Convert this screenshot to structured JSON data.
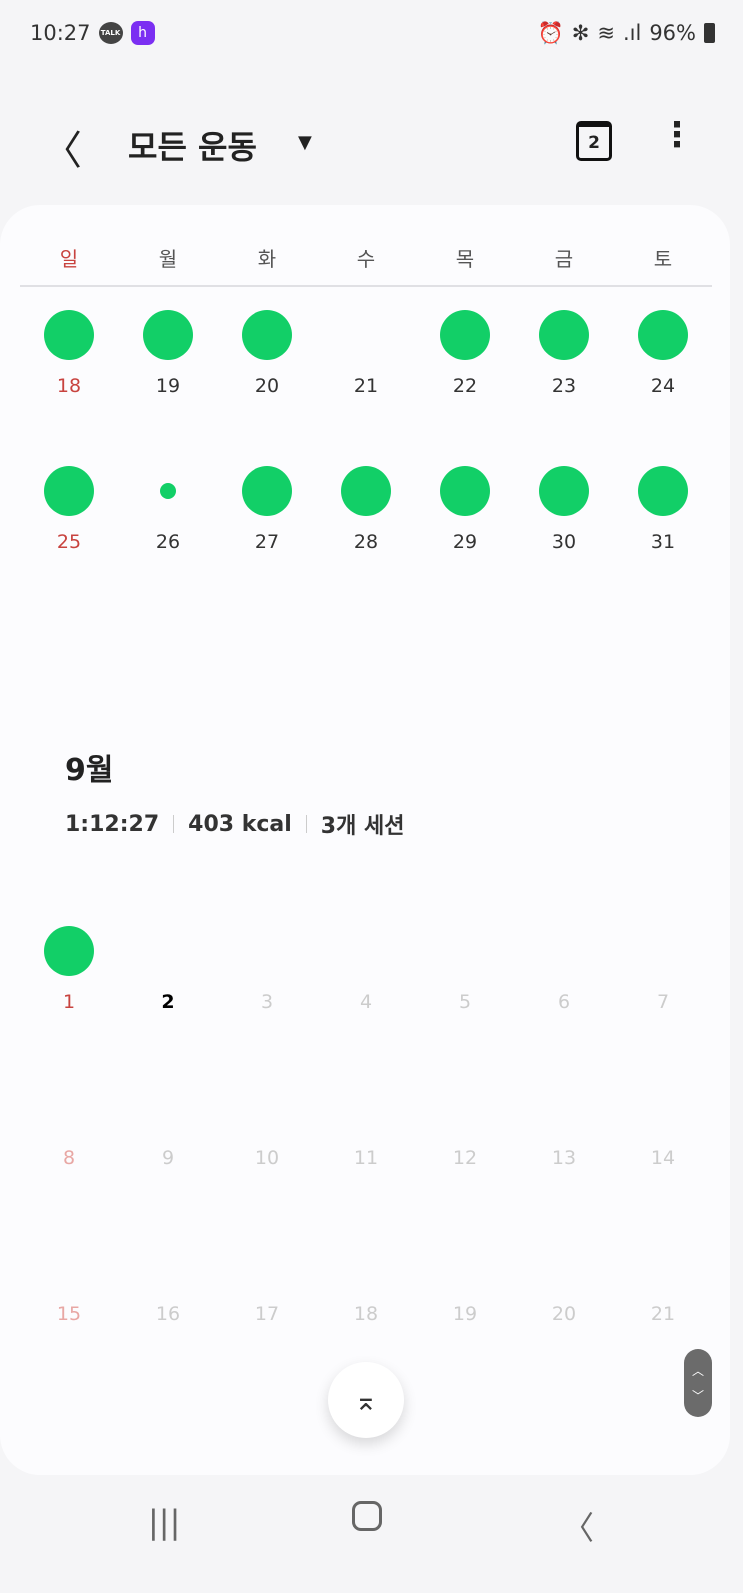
{
  "status": {
    "time": "10:27",
    "talk_badge": "TALK",
    "app_badge": "h",
    "battery": "96%",
    "icons": [
      "alarm-icon",
      "bluetooth-icon",
      "wifi-icon",
      "signal-icon",
      "battery-icon"
    ]
  },
  "header": {
    "title": "모든 운동",
    "calendar_day": "2"
  },
  "weekdays": [
    "일",
    "월",
    "화",
    "수",
    "목",
    "금",
    "토"
  ],
  "august_weeks": [
    [
      {
        "d": "18",
        "dot": "full"
      },
      {
        "d": "19",
        "dot": "full"
      },
      {
        "d": "20",
        "dot": "full"
      },
      {
        "d": "21",
        "dot": "none"
      },
      {
        "d": "22",
        "dot": "full"
      },
      {
        "d": "23",
        "dot": "full"
      },
      {
        "d": "24",
        "dot": "full"
      }
    ],
    [
      {
        "d": "25",
        "dot": "full"
      },
      {
        "d": "26",
        "dot": "small"
      },
      {
        "d": "27",
        "dot": "full"
      },
      {
        "d": "28",
        "dot": "full"
      },
      {
        "d": "29",
        "dot": "full"
      },
      {
        "d": "30",
        "dot": "full"
      },
      {
        "d": "31",
        "dot": "full"
      }
    ]
  ],
  "september": {
    "title": "9월",
    "duration": "1:12:27",
    "calories": "403 kcal",
    "sessions": "3개 세션",
    "weeks": [
      [
        {
          "d": "1",
          "dot": "full"
        },
        {
          "d": "2",
          "dot": "none",
          "today": true
        },
        {
          "d": "3",
          "faded": true
        },
        {
          "d": "4",
          "faded": true
        },
        {
          "d": "5",
          "faded": true
        },
        {
          "d": "6",
          "faded": true
        },
        {
          "d": "7",
          "faded": true
        }
      ],
      [
        {
          "d": "8",
          "faded": true
        },
        {
          "d": "9",
          "faded": true
        },
        {
          "d": "10",
          "faded": true
        },
        {
          "d": "11",
          "faded": true
        },
        {
          "d": "12",
          "faded": true
        },
        {
          "d": "13",
          "faded": true
        },
        {
          "d": "14",
          "faded": true
        }
      ],
      [
        {
          "d": "15",
          "faded": true
        },
        {
          "d": "16",
          "faded": true
        },
        {
          "d": "17",
          "faded": true
        },
        {
          "d": "18",
          "faded": true
        },
        {
          "d": "19",
          "faded": true
        },
        {
          "d": "20",
          "faded": true
        },
        {
          "d": "21",
          "faded": true
        }
      ]
    ]
  },
  "colors": {
    "activity": "#12cf67",
    "sunday": "#c8433f"
  }
}
